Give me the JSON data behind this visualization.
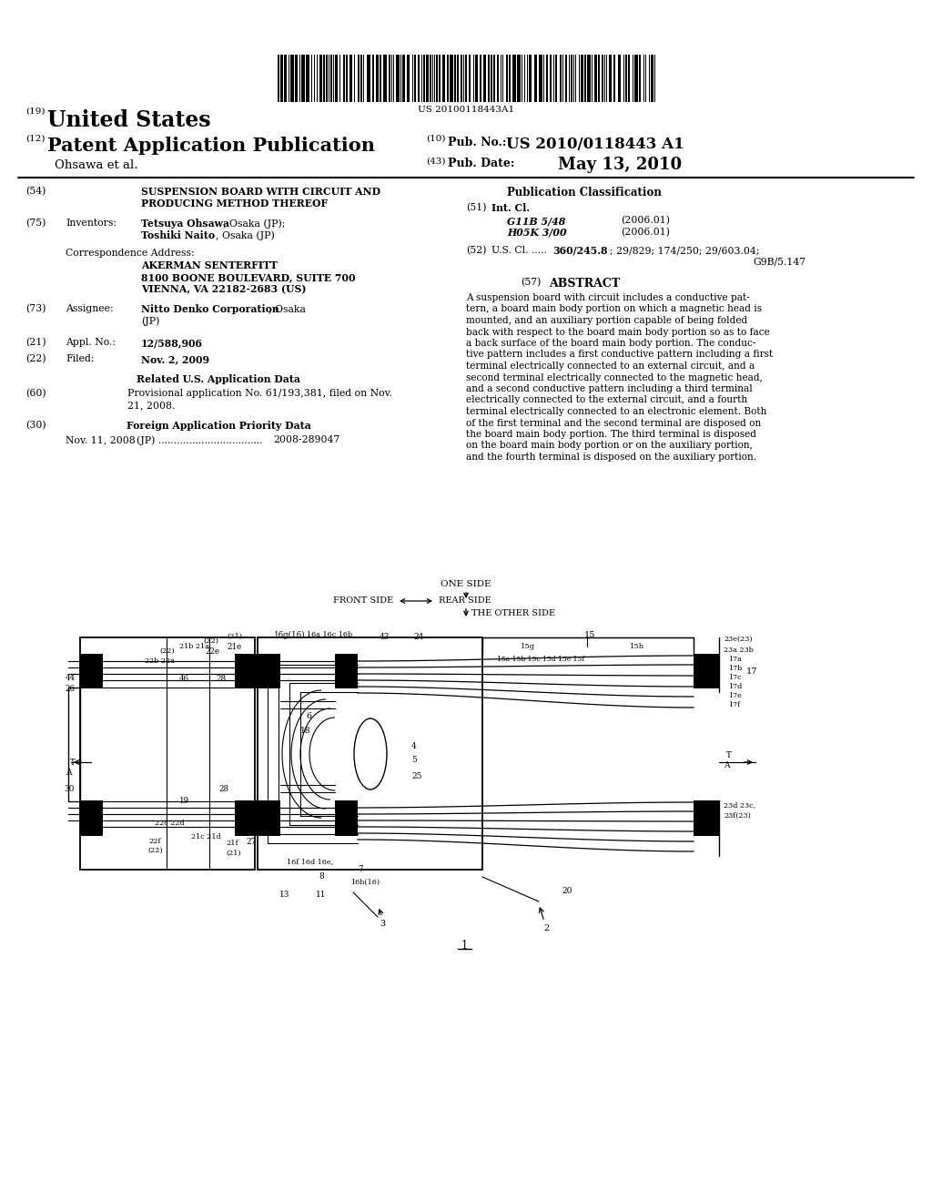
{
  "bg": "#ffffff",
  "barcode_text": "US 20100118443A1",
  "abstract_lines": [
    "A suspension board with circuit includes a conductive pat-",
    "tern, a board main body portion on which a magnetic head is",
    "mounted, and an auxiliary portion capable of being folded",
    "back with respect to the board main body portion so as to face",
    "a back surface of the board main body portion. The conduc-",
    "tive pattern includes a first conductive pattern including a first",
    "terminal electrically connected to an external circuit, and a",
    "second terminal electrically connected to the magnetic head,",
    "and a second conductive pattern including a third terminal",
    "electrically connected to the external circuit, and a fourth",
    "terminal electrically connected to an electronic element. Both",
    "of the first terminal and the second terminal are disposed on",
    "the board main body portion. The third terminal is disposed",
    "on the board main body portion or on the auxiliary portion,",
    "and the fourth terminal is disposed on the auxiliary portion."
  ]
}
